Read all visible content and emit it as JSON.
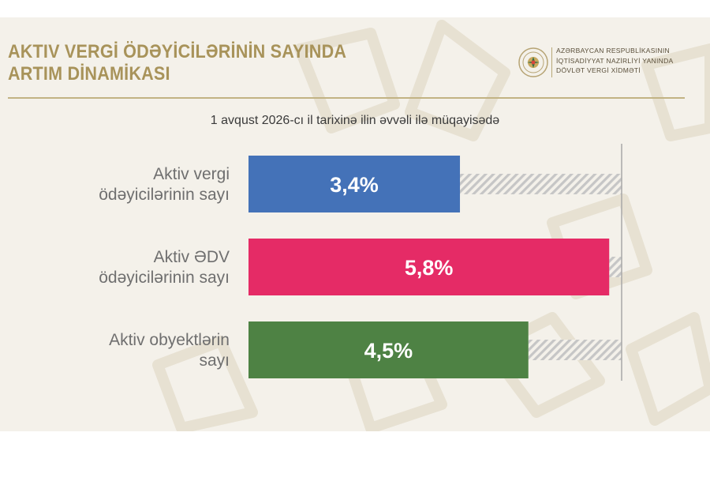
{
  "header": {
    "title_lines": [
      "AKTIV VERGİ ÖDƏYİCİLƏRİNİN SAYINDA",
      "ARTIM DİNAMİKASI"
    ],
    "org_lines": [
      "AZƏRBAYCAN RESPUBLİKASININ",
      "İQTİSADİYYAT NAZİRLİYİ YANINDA",
      "DÖVLƏT VERGİ XİDMƏTİ"
    ],
    "logo_icon": "state-emblem-icon"
  },
  "subtitle": "1 avqust 2026-cı il tarixinə ilin əvvəli ilə müqayisədə",
  "colors": {
    "accent_gold": "#a8935a",
    "background": "#f4f1ea"
  },
  "chart_data": {
    "type": "bar",
    "orientation": "horizontal",
    "categories": [
      [
        "Aktiv vergi",
        "ödəyicilərinin sayı"
      ],
      [
        "Aktiv ƏDV",
        "ödəyicilərinin sayı"
      ],
      [
        "Aktiv obyektlərin",
        "sayı"
      ]
    ],
    "values": [
      3.4,
      5.8,
      4.5
    ],
    "value_labels": [
      "3,4%",
      "5,8%",
      "4,5%"
    ],
    "bar_colors": [
      "#4472b8",
      "#e52b66",
      "#4e8244"
    ],
    "xlim": [
      0,
      6.0
    ],
    "remainder": "hatched-gray",
    "grid": false
  }
}
